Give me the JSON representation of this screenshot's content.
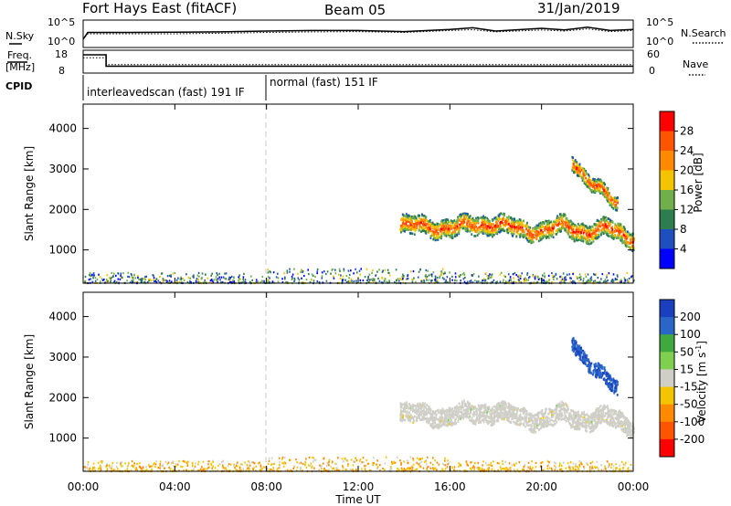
{
  "header": {
    "station": "Fort Hays East (fitACF)",
    "beam": "Beam 05",
    "date": "31/Jan/2019"
  },
  "noise_panel": {
    "left_label": "N.Sky",
    "right_label": "N.Search",
    "left_ticks": [
      "10^5",
      "10^0"
    ],
    "right_ticks": [
      "10^5",
      "10^0"
    ]
  },
  "freq_panel": {
    "left_label_1": "Freq.",
    "left_label_2": "[MHz]",
    "left_ticks": [
      "18",
      "8"
    ],
    "right_label": "Nave",
    "right_ticks": [
      "60",
      "0"
    ]
  },
  "cpid_panel": {
    "label": "CPID",
    "segments": [
      {
        "text": "interleavedscan (fast) 191 IF",
        "start_hour": 0,
        "end_hour": 8
      },
      {
        "text": "normal (fast) 151 IF",
        "start_hour": 8,
        "end_hour": 24
      }
    ]
  },
  "x_axis": {
    "title": "Time UT",
    "ticks": [
      "00:00",
      "04:00",
      "08:00",
      "12:00",
      "16:00",
      "20:00",
      "00:00"
    ]
  },
  "power_panel": {
    "ylabel": "Slant Range [km]",
    "yticks": [
      "1000",
      "2000",
      "3000",
      "4000"
    ],
    "colorbar_label": "Power [dB]",
    "colorbar_ticks": [
      "4",
      "8",
      "12",
      "16",
      "20",
      "24",
      "28"
    ],
    "colors": [
      "#0000ff",
      "#1e4fbf",
      "#2e7d4f",
      "#6fb04a",
      "#f5c400",
      "#ff8a00",
      "#ff5500",
      "#ff0000"
    ]
  },
  "velocity_panel": {
    "ylabel": "Slant Range [km]",
    "yticks": [
      "1000",
      "2000",
      "3000",
      "4000"
    ],
    "colorbar_label": "Velocity [m s^-1]",
    "colorbar_ticks": [
      "200",
      "100",
      "50",
      "15",
      "-15",
      "-50",
      "-100",
      "-200"
    ],
    "colors": [
      "#1a3fbf",
      "#2a66c8",
      "#3fa83f",
      "#7fd04f",
      "#cfcfc7",
      "#f5c400",
      "#ff8a00",
      "#ff5500",
      "#ff0000"
    ]
  },
  "chart_data": [
    {
      "type": "line",
      "title": "Fort Hays East (fitACF) Beam 05 31/Jan/2019",
      "xlabel": "Time UT",
      "xlim": [
        0,
        24
      ],
      "ylabel_left": "N.Sky",
      "ylabel_right": "N.Search",
      "series": [
        {
          "name": "N.Sky",
          "style": "solid",
          "x": [
            0,
            0.2,
            2,
            4,
            6,
            8,
            10,
            12,
            14,
            16,
            17,
            18,
            20,
            21,
            22,
            23,
            24
          ],
          "y": [
            0.3,
            0.55,
            0.55,
            0.56,
            0.57,
            0.6,
            0.62,
            0.62,
            0.58,
            0.66,
            0.72,
            0.6,
            0.7,
            0.64,
            0.74,
            0.62,
            0.66
          ]
        },
        {
          "name": "N.Search",
          "style": "dotted",
          "x": [
            0,
            0.2,
            2,
            4,
            6,
            8,
            10,
            12,
            14,
            16,
            17,
            18,
            20,
            21,
            22,
            23,
            24
          ],
          "y": [
            0.3,
            0.5,
            0.5,
            0.5,
            0.52,
            0.55,
            0.57,
            0.58,
            0.55,
            0.62,
            0.65,
            0.57,
            0.64,
            0.6,
            0.68,
            0.58,
            0.62
          ]
        }
      ]
    },
    {
      "type": "line",
      "xlabel": "Time UT",
      "xlim": [
        0,
        24
      ],
      "ylabel_left": "Freq. [MHz]",
      "ylim_left": [
        8,
        18
      ],
      "ylabel_right": "Nave",
      "ylim_right": [
        0,
        60
      ],
      "series": [
        {
          "name": "Freq.",
          "style": "solid",
          "x": [
            0,
            1,
            1,
            24
          ],
          "y": [
            16,
            16,
            11,
            11
          ]
        },
        {
          "name": "Nave",
          "style": "dotted",
          "x": [
            0,
            1,
            1,
            24
          ],
          "y": [
            40,
            40,
            22,
            22
          ]
        }
      ]
    },
    {
      "type": "heatmap",
      "title": "Power",
      "xlabel": "Time UT",
      "ylabel": "Slant Range [km]",
      "xlim": [
        0,
        24
      ],
      "ylim": [
        180,
        4600
      ],
      "colorbar_label": "Power [dB]",
      "cbar_range": [
        0,
        32
      ],
      "features": [
        {
          "name": "near-range clutter",
          "t_start": 0,
          "t_end": 24,
          "range_start": 180,
          "range_end": 500,
          "value": 10
        },
        {
          "name": "main band",
          "t": [
            13.8,
            15,
            16,
            17,
            18,
            19,
            20,
            21,
            22,
            23,
            24
          ],
          "range_center": [
            1700,
            1500,
            1600,
            1550,
            1700,
            1450,
            1500,
            1550,
            1450,
            1500,
            1300
          ],
          "width": 450,
          "value": 22
        },
        {
          "name": "upper band",
          "t": [
            21.3,
            21.8,
            22.3,
            22.8,
            23.3
          ],
          "range_center": [
            3200,
            2900,
            2600,
            2300,
            2100
          ],
          "width": 350,
          "value": 20
        }
      ]
    },
    {
      "type": "heatmap",
      "title": "Velocity",
      "xlabel": "Time UT",
      "ylabel": "Slant Range [km]",
      "xlim": [
        0,
        24
      ],
      "ylim": [
        180,
        4600
      ],
      "colorbar_label": "Velocity [m s^-1]",
      "cbar_range": [
        -250,
        250
      ],
      "features": [
        {
          "name": "near-range clutter",
          "t_start": 0,
          "t_end": 24,
          "range_start": 180,
          "range_end": 500,
          "value": -60
        },
        {
          "name": "main band",
          "t": [
            13.8,
            15,
            16,
            17,
            18,
            19,
            20,
            21,
            22,
            23,
            24
          ],
          "range_center": [
            1700,
            1500,
            1600,
            1550,
            1700,
            1450,
            1500,
            1550,
            1450,
            1500,
            1300
          ],
          "width": 450,
          "value": 0
        },
        {
          "name": "upper band",
          "t": [
            21.3,
            21.8,
            22.3,
            22.8,
            23.3
          ],
          "range_center": [
            3400,
            3050,
            2700,
            2400,
            2200
          ],
          "width": 350,
          "value": 180
        }
      ]
    }
  ]
}
